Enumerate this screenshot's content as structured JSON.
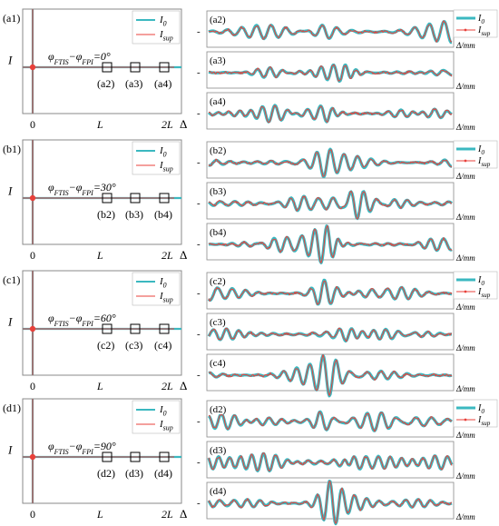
{
  "colors": {
    "i0": "#3bb8c0",
    "isup": "#e8413b",
    "frame": "#8a8a8a",
    "axis": "#000000"
  },
  "labels": {
    "yaxis": "I",
    "x0": "0",
    "xL": "L",
    "x2L": "2L",
    "xdelta": "Δ",
    "xunit": "Δ/mm",
    "legend_i0": "I",
    "legend_i0_sub": "0",
    "legend_isup": "I",
    "legend_isup_sub": "sup",
    "ytick": "-"
  },
  "chart_data": [
    {
      "type": "line",
      "panel": "(a1)",
      "annotation": "φ_FTIS−φ_FPI=0°",
      "annotation_phi1": "φ",
      "annotation_sub1": "FTIS",
      "annotation_mid": "−φ",
      "annotation_sub2": "FPI",
      "annotation_val": "=0°",
      "markers": [
        "(a2)",
        "(a3)",
        "(a4)"
      ],
      "insets": [
        "(a2)",
        "(a3)",
        "(a4)"
      ],
      "series": [
        {
          "name": "I0"
        },
        {
          "name": "Isup"
        }
      ]
    },
    {
      "type": "line",
      "panel": "(b1)",
      "annotation": "φ_FTIS−φ_FPI=30°",
      "annotation_phi1": "φ",
      "annotation_sub1": "FTIS",
      "annotation_mid": "−φ",
      "annotation_sub2": "FPI",
      "annotation_val": "=30°",
      "markers": [
        "(b2)",
        "(b3)",
        "(b4)"
      ],
      "insets": [
        "(b2)",
        "(b3)",
        "(b4)"
      ],
      "series": [
        {
          "name": "I0"
        },
        {
          "name": "Isup"
        }
      ]
    },
    {
      "type": "line",
      "panel": "(c1)",
      "annotation": "φ_FTIS−φ_FPI=60°",
      "annotation_phi1": "φ",
      "annotation_sub1": "FTIS",
      "annotation_mid": "−φ",
      "annotation_sub2": "FPI",
      "annotation_val": "=60°",
      "markers": [
        "(c2)",
        "(c3)",
        "(c4)"
      ],
      "insets": [
        "(c2)",
        "(c3)",
        "(c4)"
      ],
      "series": [
        {
          "name": "I0"
        },
        {
          "name": "Isup"
        }
      ]
    },
    {
      "type": "line",
      "panel": "(d1)",
      "annotation": "φ_FTIS−φ_FPI=90°",
      "annotation_phi1": "φ",
      "annotation_sub1": "FTIS",
      "annotation_mid": "−φ",
      "annotation_sub2": "FPI",
      "annotation_val": "=90°",
      "markers": [
        "(d2)",
        "(d3)",
        "(d4)"
      ],
      "insets": [
        "(d2)",
        "(d3)",
        "(d4)"
      ],
      "series": [
        {
          "name": "I0"
        },
        {
          "name": "Isup"
        }
      ]
    }
  ]
}
